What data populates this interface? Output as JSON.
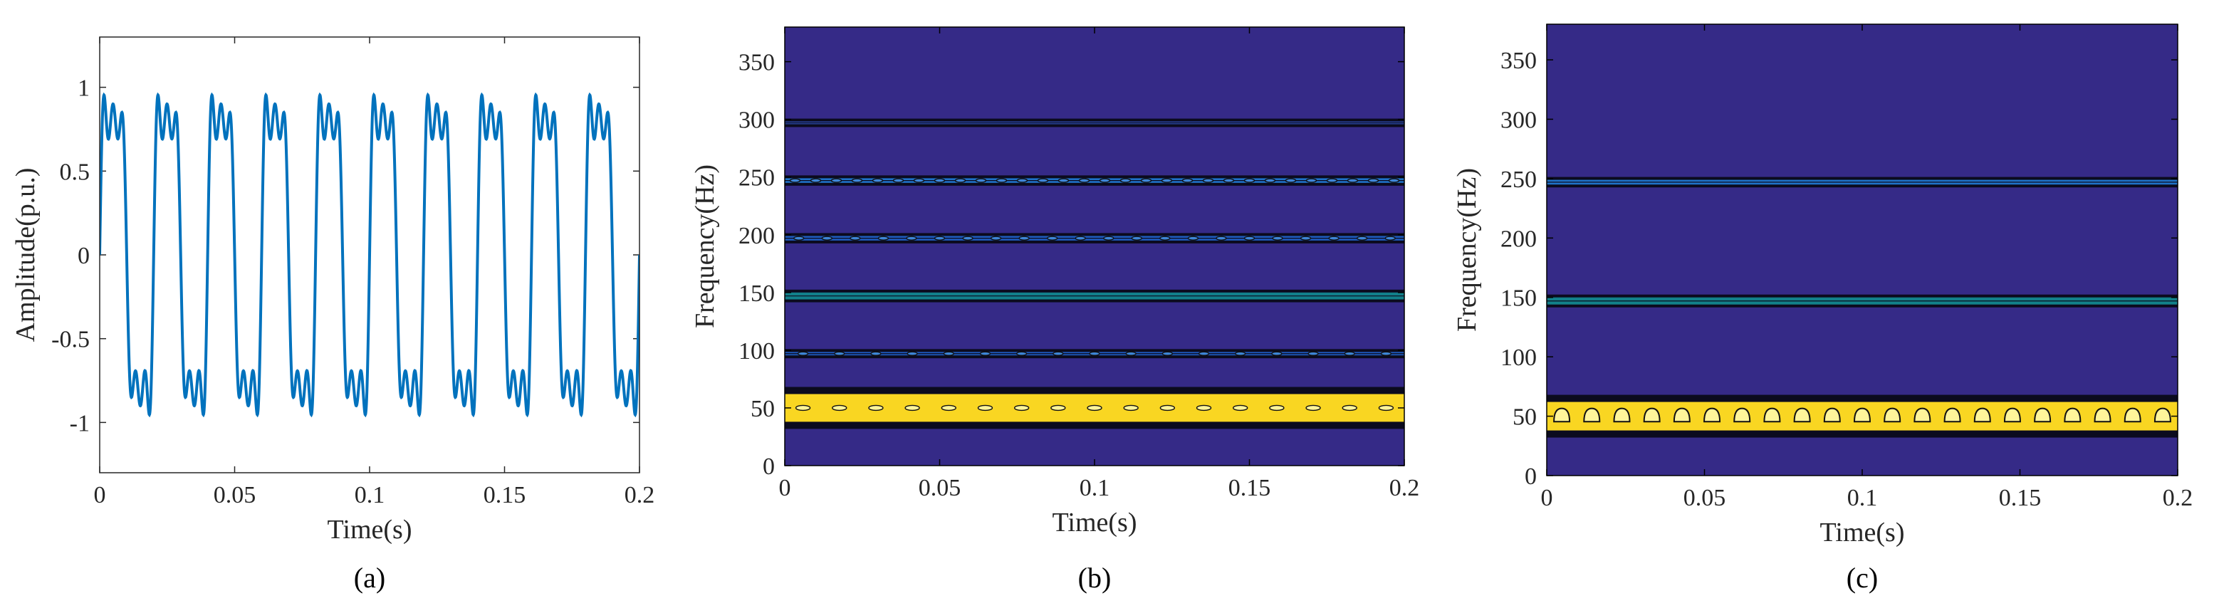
{
  "chart_data": [
    {
      "id": "a",
      "type": "line",
      "caption": "(a)",
      "xlabel": "Time(s)",
      "ylabel": "Amplitude(p.u.)",
      "xlim": [
        0,
        0.2
      ],
      "ylim": [
        -1.3,
        1.3
      ],
      "xticks": [
        0,
        0.05,
        0.1,
        0.15,
        0.2
      ],
      "xtick_labels": [
        "0",
        "0.05",
        "0.1",
        "0.15",
        "0.2"
      ],
      "yticks": [
        1,
        0.5,
        0,
        -0.5,
        -1
      ],
      "ytick_labels": [
        "1",
        "0.5",
        "0",
        "-0.5",
        "-1"
      ],
      "line_color": "#0072BD",
      "series": [
        {
          "components": [
            {
              "frequency_hz": 50,
              "amplitude": 1.0
            },
            {
              "frequency_hz": 150,
              "amplitude": 0.3
            },
            {
              "frequency_hz": 250,
              "amplitude": 0.2
            },
            {
              "frequency_hz": 100,
              "amplitude": 0.03
            },
            {
              "frequency_hz": 200,
              "amplitude": 0.03
            },
            {
              "frequency_hz": 300,
              "amplitude": 0.02
            }
          ]
        }
      ]
    },
    {
      "id": "b",
      "type": "heatmap",
      "caption": "(b)",
      "xlabel": "Time(s)",
      "ylabel": "Frequency(Hz)",
      "xlim": [
        0,
        0.2
      ],
      "ylim": [
        0,
        380
      ],
      "xticks": [
        0,
        0.05,
        0.1,
        0.15,
        0.2
      ],
      "xtick_labels": [
        "0",
        "0.05",
        "0.1",
        "0.15",
        "0.2"
      ],
      "yticks": [
        0,
        50,
        100,
        150,
        200,
        250,
        300,
        350
      ],
      "ytick_labels": [
        "0",
        "50",
        "100",
        "150",
        "200",
        "250",
        "300",
        "350"
      ],
      "background_color": "#352A87",
      "bands": [
        {
          "center_hz": 50,
          "half_width_hz": 12,
          "color": "#F9D622",
          "markers": 17,
          "marker_shape": "ellipse"
        },
        {
          "center_hz": 97,
          "half_width_hz": 1.5,
          "color": "#1E5BBE",
          "markers": 17,
          "marker_shape": "ellipse"
        },
        {
          "center_hz": 147,
          "half_width_hz": 3,
          "color": "#12808A",
          "markers": 0
        },
        {
          "center_hz": 197,
          "half_width_hz": 2,
          "color": "#1E5BBE",
          "markers": 22,
          "marker_shape": "ellipse"
        },
        {
          "center_hz": 247,
          "half_width_hz": 2,
          "color": "#1F72C8",
          "markers": 30,
          "marker_shape": "ellipse"
        },
        {
          "center_hz": 297,
          "half_width_hz": 1.2,
          "color": "#2A48A8",
          "markers": 0
        }
      ]
    },
    {
      "id": "c",
      "type": "heatmap",
      "caption": "(c)",
      "xlabel": "Time(s)",
      "ylabel": "Frequency(Hz)",
      "xlim": [
        0,
        0.2
      ],
      "ylim": [
        0,
        380
      ],
      "xticks": [
        0,
        0.05,
        0.1,
        0.15,
        0.2
      ],
      "xtick_labels": [
        "0",
        "0.05",
        "0.1",
        "0.15",
        "0.2"
      ],
      "yticks": [
        0,
        50,
        100,
        150,
        200,
        250,
        300,
        350
      ],
      "ytick_labels": [
        "0",
        "50",
        "100",
        "150",
        "200",
        "250",
        "300",
        "350"
      ],
      "background_color": "#352A87",
      "bands": [
        {
          "center_hz": 50,
          "half_width_hz": 12,
          "color": "#F9D622",
          "markers": 21,
          "marker_shape": "triangle"
        },
        {
          "center_hz": 147,
          "half_width_hz": 3,
          "color": "#12808A",
          "markers": 0
        },
        {
          "center_hz": 247,
          "half_width_hz": 2,
          "color": "#1F72C8",
          "markers": 0
        }
      ]
    }
  ]
}
